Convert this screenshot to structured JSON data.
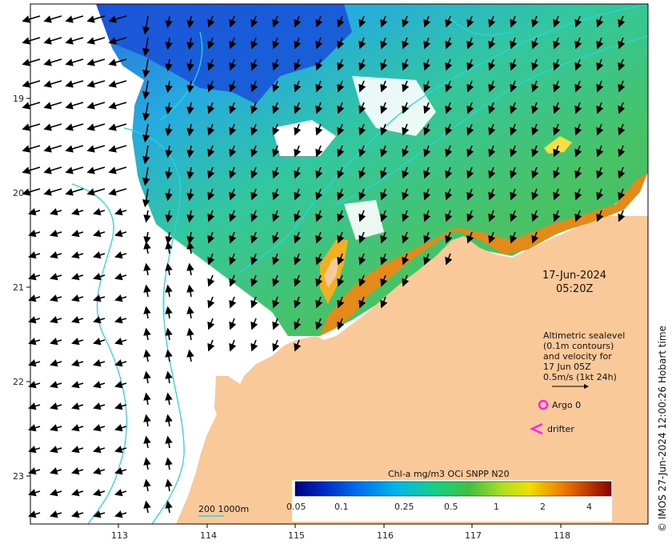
{
  "map": {
    "date_line1": "17-Jun-2024",
    "date_line2": "05:20Z",
    "credit": "© IMOS 27-Jun-2024 12:00:26 Hobart time",
    "lat_ticks": [
      "19",
      "20",
      "21",
      "22",
      "23"
    ],
    "lon_ticks": [
      "113",
      "114",
      "115",
      "116",
      "117",
      "118"
    ],
    "legend": {
      "line1": "Altimetric sealevel",
      "line2": "(0.1m contours)",
      "line3": "and velocity for",
      "line4": "17 Jun 05Z",
      "line5": "0.5m/s (1kt 24h)",
      "argo": "Argo 0",
      "drifter": "drifter"
    },
    "scale_label": "200  1000m",
    "colorbar": {
      "title": "Chl-a mg/m3 OCi SNPP N20",
      "ticks": [
        "0.05",
        "0.1",
        "0.25",
        "0.5",
        "1",
        "2",
        "4"
      ]
    },
    "colors": {
      "land": "#f9c999",
      "contour": "#22d8e0",
      "marker": "#ff22ee"
    }
  }
}
